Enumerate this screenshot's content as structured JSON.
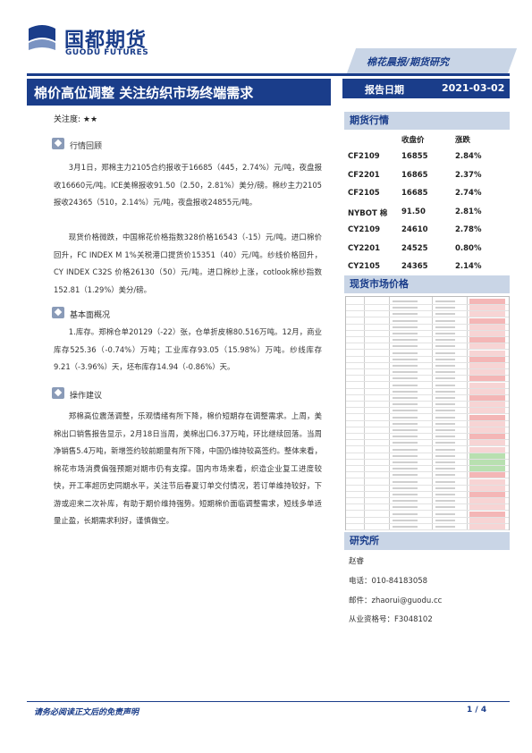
{
  "header": {
    "logo_cn": "国都期货",
    "logo_en": "GUODU FUTURES",
    "band_text": "棉花晨报/期货研究",
    "title": "棉价高位调整  关注纺织市场终端需求",
    "date_label": "报告日期",
    "date_value": "2021-03-02"
  },
  "focus": "关注度: ★★",
  "sections": {
    "review_title": "行情回顾",
    "review_p1": "3月1日，郑棉主力2105合约报收于16685（445，2.74%）元/吨，夜盘报收16660元/吨。ICE美棉报收91.50（2.50，2.81%）美分/磅。棉纱主力2105报收24365（510，2.14%）元/吨，夜盘报收24855元/吨。",
    "review_p2": "现货价格微跌，中国棉花价格指数328价格16543（-15）元/吨。进口棉价回升，FC INDEX M 1%关税港口提货价15351（40）元/吨。纱线价格回升，CY INDEX C32S 价格26130（50）元/吨。进口棉纱上涨，cotlook棉纱指数152.81（1.29%）美分/磅。",
    "fund_title": "基本面概况",
    "fund_p1": "1.库存。郑棉仓单20129（-22）张，仓单折皮棉80.516万吨。12月，商业库存525.36（-0.74%）万吨；工业库存93.05（15.98%）万吨。纱线库存9.21（-3.96%）天，坯布库存14.94（-0.86%）天。",
    "op_title": "操作建议",
    "op_p1": "郑棉高位震荡调整，乐观情绪有所下降，棉价短期存在调整需求。上周，美棉出口销售报告显示，2月18日当周，美棉出口6.37万吨，环比继续回落。当周净销售5.4万吨，新增签约较前期量有所下降，中国仍维持较高签约。整体来看，棉花市场消费偏强预期对期市仍有支撑。国内市场来看，织造企业复工进度较快，开工率超历史同期水平，关注节后春夏订单交付情况，若订单维持较好，下游或迎来二次补库，有助于期价维持强势。短期棉价面临调整需求，短线多单适量止盈，长期需求利好，谨慎做空。"
  },
  "quotes": {
    "head": "期货行情",
    "col_price": "收盘价",
    "col_change": "涨跌",
    "rows": [
      {
        "name": "CF2109",
        "price": "16855",
        "change": "2.84%"
      },
      {
        "name": "CF2201",
        "price": "16865",
        "change": "2.37%"
      },
      {
        "name": "CF2105",
        "price": "16685",
        "change": "2.74%"
      },
      {
        "name": "NYBOT 棉",
        "price": "91.50",
        "change": "2.81%"
      },
      {
        "name": "CY2109",
        "price": "24610",
        "change": "2.78%"
      },
      {
        "name": "CY2201",
        "price": "24525",
        "change": "0.80%"
      },
      {
        "name": "CY2105",
        "price": "24365",
        "change": "2.14%"
      }
    ]
  },
  "market": {
    "head": "现货市场价格",
    "colors": {
      "up": "#f4b6b6",
      "down": "#b8e0b0",
      "flat": "#f7d4d4"
    }
  },
  "research": {
    "head": "研究所",
    "name": "赵睿",
    "phone": "电话：010-84183058",
    "email": "邮件：zhaorui@guodu.cc",
    "license": "从业资格号：F3048102"
  },
  "footer": {
    "disclaimer": "请务必阅读正文后的免责声明",
    "page": "1 / 4"
  }
}
